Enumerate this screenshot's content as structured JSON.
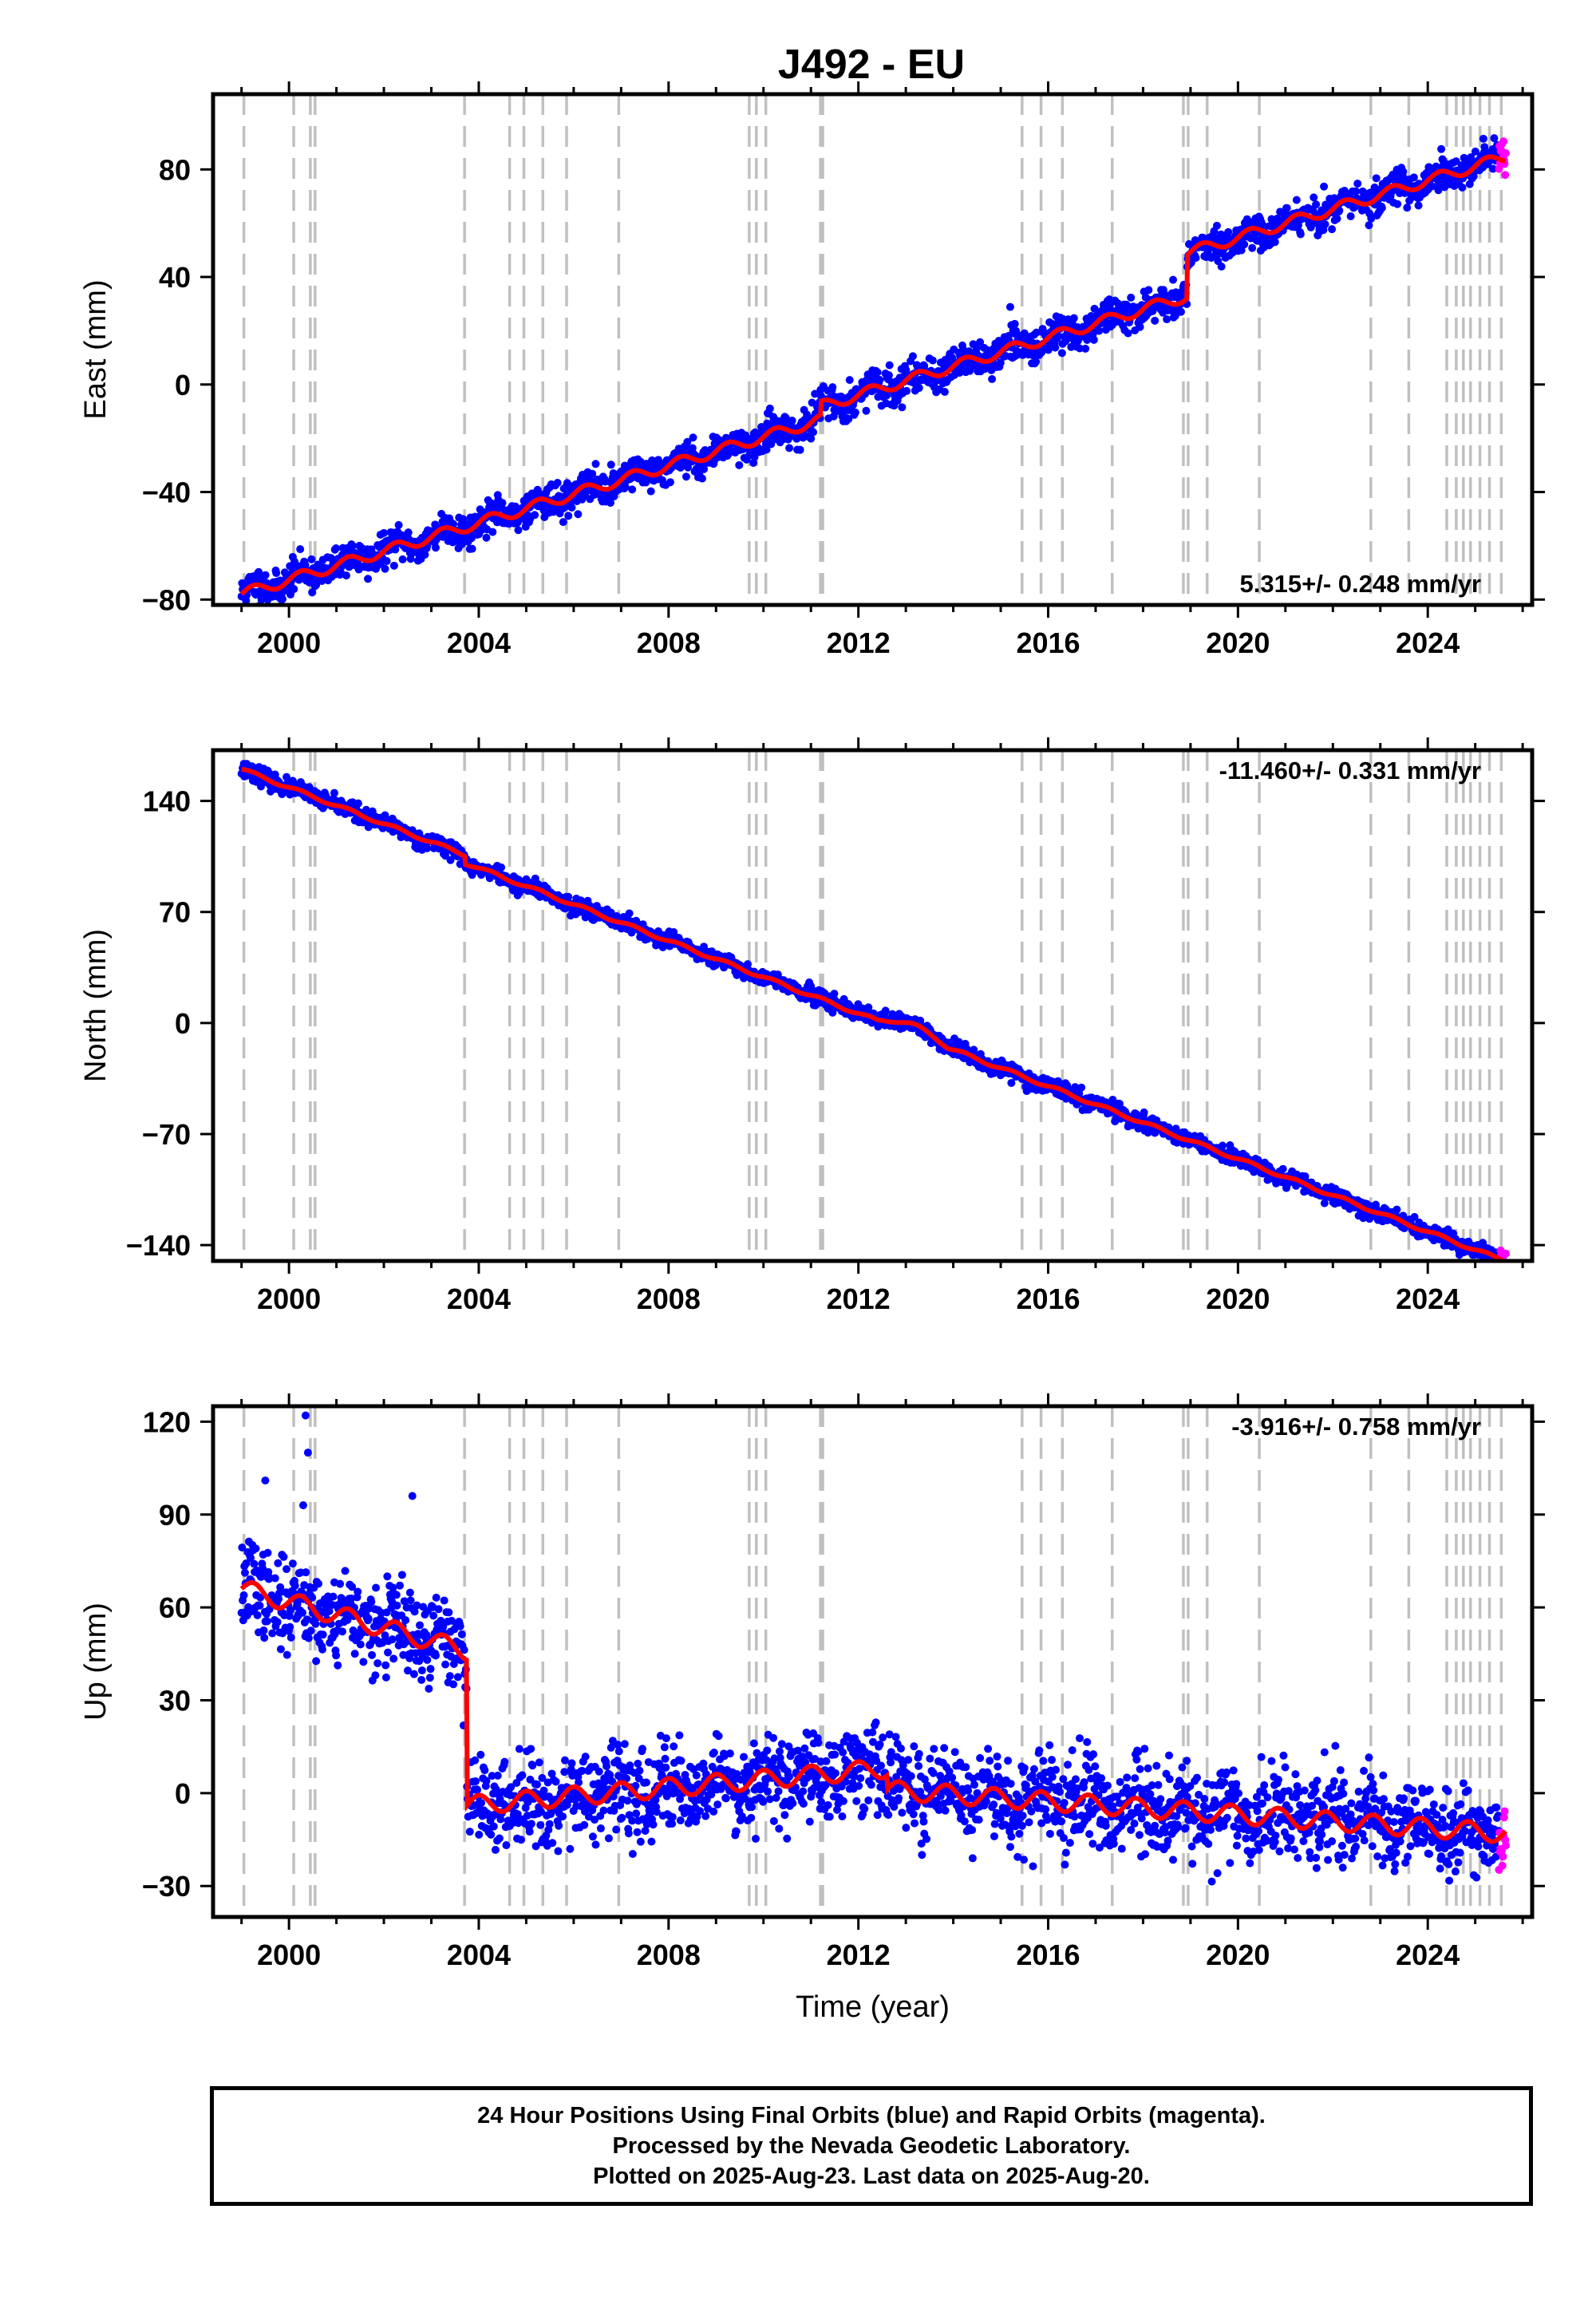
{
  "title": "J492 - EU",
  "colors": {
    "final": "#0000ff",
    "rapid": "#ff00ff",
    "model": "#ff0000",
    "event": "#c0c0c0"
  },
  "chart_data": [
    {
      "type": "scatter",
      "component": "east",
      "ylabel": "East (mm)",
      "xlabel": "",
      "xlim": [
        1998.4,
        2026.2
      ],
      "ylim": [
        -82,
        108
      ],
      "yticks": [
        -80,
        -40,
        0,
        40,
        80
      ],
      "xticks": [
        2000,
        2004,
        2008,
        2012,
        2016,
        2020,
        2024
      ],
      "rate_label": "5.315+/- 0.248 mm/yr",
      "rate_position": "bottom-right",
      "start": -69,
      "velocity": 5.315,
      "scatter": 3.0,
      "steps": [
        [
          1999.0,
          -9
        ],
        [
          2011.2,
          5
        ],
        [
          2018.92,
          16
        ]
      ],
      "seasonal": 2.0,
      "noise_seed": 11
    },
    {
      "type": "scatter",
      "component": "north",
      "ylabel": "North (mm)",
      "xlabel": "",
      "xlim": [
        1998.4,
        2026.2
      ],
      "ylim": [
        -150,
        172
      ],
      "yticks": [
        -140,
        -70,
        0,
        70,
        140
      ],
      "xticks": [
        2000,
        2004,
        2008,
        2012,
        2016,
        2020,
        2024
      ],
      "rate_label": "-11.460+/- 0.331 mm/yr",
      "rate_position": "top-right",
      "start": 160,
      "velocity": -11.46,
      "scatter": 2.5,
      "steps": [
        [
          2003.7,
          -5
        ]
      ],
      "seasonal": 1.0,
      "bumps": [
        [
          2012.4,
          2013.9,
          6
        ]
      ],
      "noise_seed": 23
    },
    {
      "type": "scatter",
      "component": "up",
      "ylabel": "Up (mm)",
      "xlabel": "Time (year)",
      "xlim": [
        1998.4,
        2026.2
      ],
      "ylim": [
        -40,
        125
      ],
      "yticks": [
        -30,
        0,
        30,
        60,
        90,
        120
      ],
      "xticks": [
        2000,
        2004,
        2008,
        2012,
        2016,
        2020,
        2024
      ],
      "rate_label": "-3.916+/- 0.758 mm/yr",
      "rate_position": "top-right",
      "segments": [
        [
          1999.0,
          2003.75,
          66,
          46
        ],
        [
          2003.75,
          2012.6,
          -4,
          8
        ],
        [
          2012.6,
          2025.65,
          1,
          -13
        ]
      ],
      "scatter": 7.0,
      "noise_seed": 37
    }
  ],
  "event_years": [
    1999.05,
    2000.1,
    2000.45,
    2000.55,
    2003.7,
    2004.65,
    2004.95,
    2005.35,
    2005.85,
    2006.95,
    2009.7,
    2009.85,
    2010.05,
    2011.2,
    2011.25,
    2015.45,
    2015.85,
    2016.3,
    2017.35,
    2018.85,
    2018.95,
    2019.35,
    2020.45,
    2022.8,
    2023.6,
    2024.4,
    2024.6,
    2024.75,
    2024.9,
    2025.1,
    2025.3,
    2025.55
  ],
  "data_span": {
    "start": 1999.0,
    "end": 2025.65,
    "rapid_start": 2025.5
  },
  "footer": {
    "line1": "24 Hour Positions Using Final Orbits (blue) and Rapid Orbits (magenta).",
    "line2": "Processed by the Nevada Geodetic Laboratory.",
    "line3": "Plotted on 2025-Aug-23. Last data on 2025-Aug-20."
  }
}
